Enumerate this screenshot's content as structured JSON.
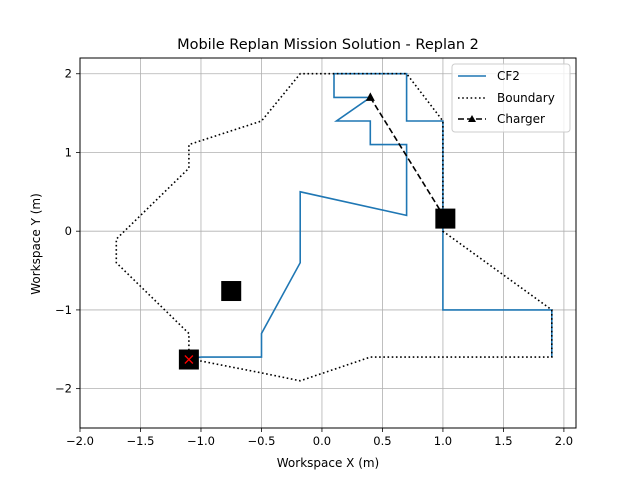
{
  "chart_data": {
    "type": "line",
    "title": "Mobile Replan Mission Solution - Replan 2",
    "xlabel": "Workspace X (m)",
    "ylabel": "Workspace Y (m)",
    "xlim": [
      -2.0,
      2.1
    ],
    "ylim": [
      -2.5,
      2.2
    ],
    "xticks": [
      -2.0,
      -1.5,
      -1.0,
      -0.5,
      0.0,
      0.5,
      1.0,
      1.5,
      2.0
    ],
    "xtick_labels": [
      "−2.0",
      "−1.5",
      "−1.0",
      "−0.5",
      "0.0",
      "0.5",
      "1.0",
      "1.5",
      "2.0"
    ],
    "yticks": [
      -2,
      -1,
      0,
      1,
      2
    ],
    "ytick_labels": [
      "−2",
      "−1",
      "0",
      "1",
      "2"
    ],
    "grid": true,
    "legend_position": "top-right",
    "series": [
      {
        "name": "CF2",
        "style": "solid",
        "color": "#1f77b4",
        "x": [
          -1.1,
          -1.0,
          -0.5,
          -0.5,
          -0.18,
          -0.18,
          0.7,
          0.7,
          0.4,
          0.4,
          0.12,
          0.4,
          0.1,
          0.1,
          0.7,
          0.7,
          1.0,
          1.0,
          1.9,
          1.9
        ],
        "y": [
          -1.62,
          -1.6,
          -1.6,
          -1.3,
          -0.4,
          0.5,
          0.2,
          1.1,
          1.1,
          1.4,
          1.4,
          1.7,
          1.7,
          2.0,
          2.0,
          1.4,
          1.4,
          -1.0,
          -1.0,
          -1.6
        ]
      },
      {
        "name": "Boundary",
        "style": "dotted",
        "color": "#000000",
        "x": [
          -1.1,
          -1.1,
          -1.7,
          -1.7,
          -1.1,
          -1.1,
          -0.5,
          -0.18,
          0.7,
          1.0,
          1.0,
          1.9,
          1.9,
          0.4,
          -0.18,
          -0.5,
          -1.1
        ],
        "y": [
          -1.62,
          -1.3,
          -0.4,
          -0.1,
          0.8,
          1.1,
          1.4,
          2.0,
          2.0,
          1.4,
          0.0,
          -1.0,
          -1.6,
          -1.6,
          -1.9,
          -1.8,
          -1.62
        ]
      },
      {
        "name": "Charger",
        "style": "dashed",
        "marker": "triangle",
        "color": "#000000",
        "x": [
          0.4,
          1.02
        ],
        "y": [
          1.7,
          0.16
        ]
      }
    ],
    "square_markers": {
      "color": "#000000",
      "x": [
        -1.1,
        -0.75,
        1.02
      ],
      "y": [
        -1.63,
        -0.76,
        0.16
      ]
    },
    "x_markers": {
      "color": "#ff0000",
      "x": [
        -1.1
      ],
      "y": [
        -1.63
      ]
    }
  }
}
